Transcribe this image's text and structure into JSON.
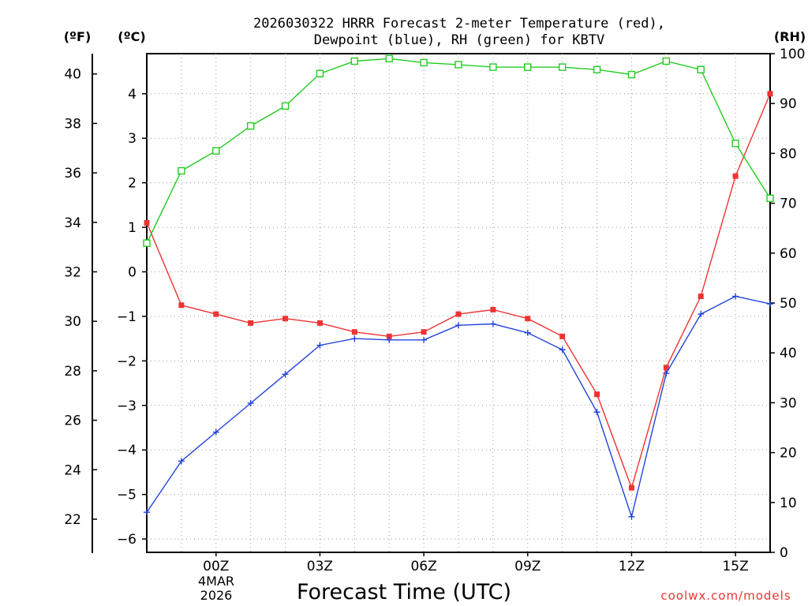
{
  "chart_data": {
    "type": "line",
    "title_line1": "2026030322 HRRR Forecast 2-meter Temperature (red),",
    "title_line2": "Dewpoint (blue), RH (green) for KBTV",
    "xlabel": "Forecast Time (UTC)",
    "date_label_day": "4MAR",
    "date_label_year": "2026",
    "watermark": "coolwx.com/models",
    "y_left_outer_unit": "(ºF)",
    "y_left_inner_unit": "(ºC)",
    "y_right_unit": "(RH)",
    "x": [
      -2,
      -1,
      0,
      1,
      2,
      3,
      4,
      5,
      6,
      7,
      8,
      9,
      10,
      11,
      12,
      13,
      14,
      15,
      16
    ],
    "x_range": [
      -2,
      16
    ],
    "x_ticks": [
      {
        "x": 0,
        "label": "00Z"
      },
      {
        "x": 3,
        "label": "03Z"
      },
      {
        "x": 6,
        "label": "06Z"
      },
      {
        "x": 9,
        "label": "09Z"
      },
      {
        "x": 12,
        "label": "12Z"
      },
      {
        "x": 15,
        "label": "15Z"
      }
    ],
    "y_celsius_range": [
      -6.3,
      4.9
    ],
    "y_celsius_ticks": [
      4,
      3,
      2,
      1,
      0,
      -1,
      -2,
      -3,
      -4,
      -5,
      -6
    ],
    "y_celsius_tick_labels": [
      "4",
      "3",
      "2",
      "1",
      "0",
      "−1",
      "−2",
      "−3",
      "−4",
      "−5",
      "−6"
    ],
    "y_fahrenheit_ticks": [
      40,
      38,
      36,
      34,
      32,
      30,
      28,
      26,
      24,
      22
    ],
    "y_fahrenheit_tick_labels": [
      "40",
      "38",
      "36",
      "34",
      "32",
      "30",
      "28",
      "26",
      "24",
      "22"
    ],
    "y_rh_range": [
      0,
      100
    ],
    "y_rh_ticks": [
      100,
      90,
      80,
      70,
      60,
      50,
      40,
      30,
      20,
      10,
      0
    ],
    "y_rh_tick_labels": [
      "100",
      "90",
      "80",
      "70",
      "60",
      "50",
      "40",
      "30",
      "20",
      "10",
      "0"
    ],
    "grid": true,
    "series": [
      {
        "name": "2-meter Temperature",
        "unit": "C",
        "color": "#ee3333",
        "marker": "filled-square",
        "values": [
          1.1,
          -0.75,
          -0.95,
          -1.15,
          -1.05,
          -1.15,
          -1.35,
          -1.45,
          -1.35,
          -0.95,
          -0.85,
          -1.05,
          -1.45,
          -2.75,
          -4.85,
          -2.15,
          -0.55,
          2.15,
          4.0
        ]
      },
      {
        "name": "Dewpoint",
        "unit": "C",
        "color": "#2244dd",
        "marker": "plus",
        "values": [
          -5.4,
          -4.25,
          -3.6,
          -2.95,
          -2.3,
          -1.65,
          -1.5,
          -1.53,
          -1.53,
          -1.2,
          -1.17,
          -1.37,
          -1.75,
          -3.15,
          -5.5,
          -2.28,
          -0.95,
          -0.55,
          -0.72
        ]
      },
      {
        "name": "Relative Humidity",
        "unit": "%",
        "color": "#22cc22",
        "marker": "open-square",
        "values": [
          62,
          76.5,
          80.5,
          85.5,
          89.5,
          96,
          98.5,
          99,
          98.2,
          97.8,
          97.3,
          97.3,
          97.3,
          96.8,
          95.8,
          98.5,
          96.8,
          82,
          71
        ]
      }
    ]
  }
}
